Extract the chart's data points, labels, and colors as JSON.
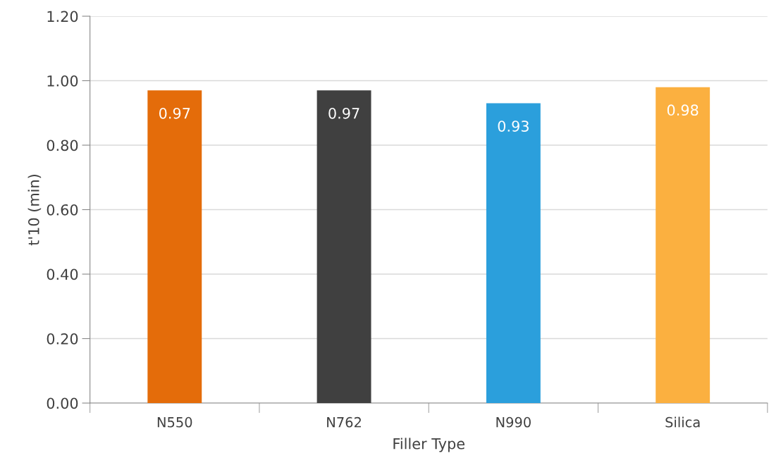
{
  "chart_data": {
    "type": "bar",
    "xlabel": "Filler Type",
    "ylabel": "t'10 (min)",
    "categories": [
      "N550",
      "N762",
      "N990",
      "Silica"
    ],
    "values": [
      0.97,
      0.97,
      0.93,
      0.98
    ],
    "colors": [
      "#e46c0a",
      "#404040",
      "#2b9fdc",
      "#fbb040"
    ],
    "ylim": [
      0,
      1.2
    ],
    "yticks": [
      {
        "value": 0,
        "label": "0.00"
      },
      {
        "value": 0.2,
        "label": "0.20"
      },
      {
        "value": 0.4,
        "label": "0.40"
      },
      {
        "value": 0.6,
        "label": "0.60"
      },
      {
        "value": 0.8,
        "label": "0.80"
      },
      {
        "value": 1.0,
        "label": "1.00"
      },
      {
        "value": 1.2,
        "label": "1.20"
      }
    ],
    "grid": "y",
    "data_labels": true
  }
}
